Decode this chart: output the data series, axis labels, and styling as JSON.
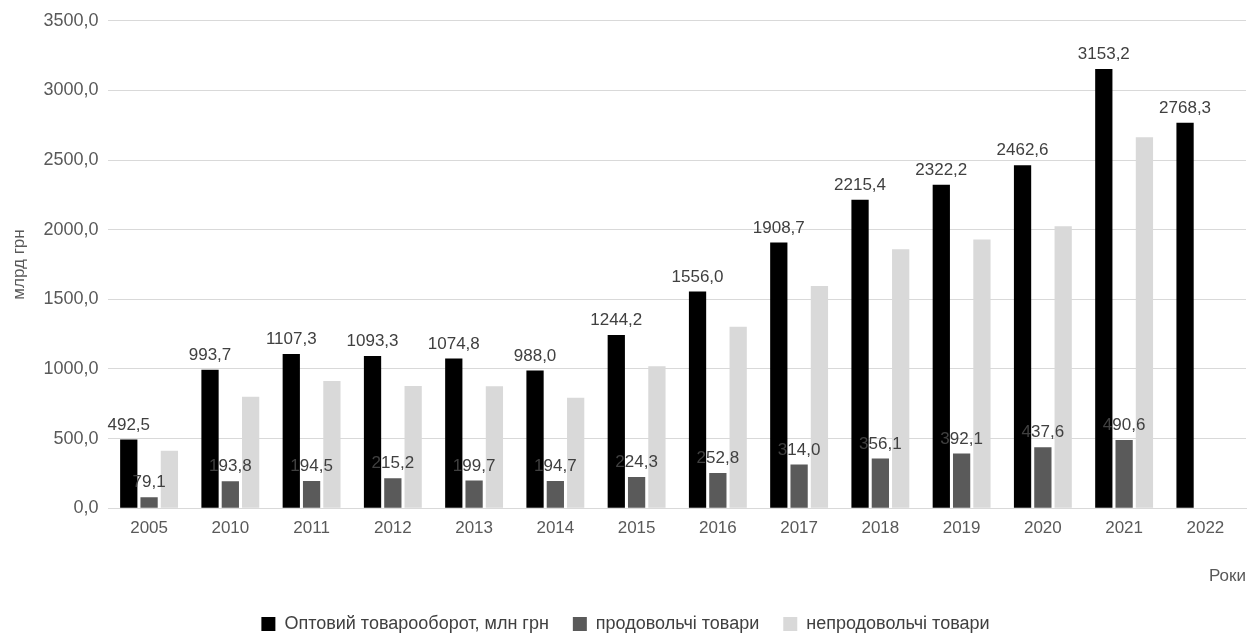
{
  "chart_data": {
    "type": "bar",
    "ylabel": "млрд грн",
    "xlabel": "Роки",
    "categories": [
      "2005",
      "2010",
      "2011",
      "2012",
      "2013",
      "2014",
      "2015",
      "2016",
      "2017",
      "2018",
      "2019",
      "2020",
      "2021",
      "2022"
    ],
    "series": [
      {
        "name": "Оптовий товарооборот, млн грн",
        "color": "#000000",
        "values": [
          492.5,
          993.7,
          1107.3,
          1093.3,
          1074.8,
          988.0,
          1244.2,
          1556.0,
          1908.7,
          2215.4,
          2322.2,
          2462.6,
          3153.2,
          2768.3
        ],
        "value_labels": [
          "492,5",
          "993,7",
          "1107,3",
          "1093,3",
          "1074,8",
          "988,0",
          "1244,2",
          "1556,0",
          "1908,7",
          "2215,4",
          "2322,2",
          "2462,6",
          "3153,2",
          "2768,3"
        ]
      },
      {
        "name": "продовольчі товари",
        "color": "#5a5a5a",
        "values": [
          79.1,
          193.8,
          194.5,
          215.2,
          199.7,
          194.7,
          224.3,
          252.8,
          314.0,
          356.1,
          392.1,
          437.6,
          490.6,
          null
        ],
        "value_labels": [
          "79,1",
          "193,8",
          "194,5",
          "215,2",
          "199,7",
          "194,7",
          "224,3",
          "252,8",
          "314,0",
          "356,1",
          "392,1",
          "437,6",
          "490,6",
          null
        ]
      },
      {
        "name": "непродовольчі товари",
        "color": "#d9d9d9",
        "values": [
          413,
          800,
          913,
          878,
          875,
          793,
          1020,
          1303,
          1595,
          1860,
          1930,
          2025,
          2663,
          null
        ]
      }
    ],
    "ylim": [
      0,
      3500
    ],
    "yticks": [
      {
        "value": 0,
        "label": "0,0"
      },
      {
        "value": 500,
        "label": "500,0"
      },
      {
        "value": 1000,
        "label": "1000,0"
      },
      {
        "value": 1500,
        "label": "1500,0"
      },
      {
        "value": 2000,
        "label": "2000,0"
      },
      {
        "value": 2500,
        "label": "2500,0"
      },
      {
        "value": 3000,
        "label": "3000,0"
      },
      {
        "value": 3500,
        "label": "3500,0"
      }
    ],
    "grid": "y",
    "legend": "bottom"
  }
}
